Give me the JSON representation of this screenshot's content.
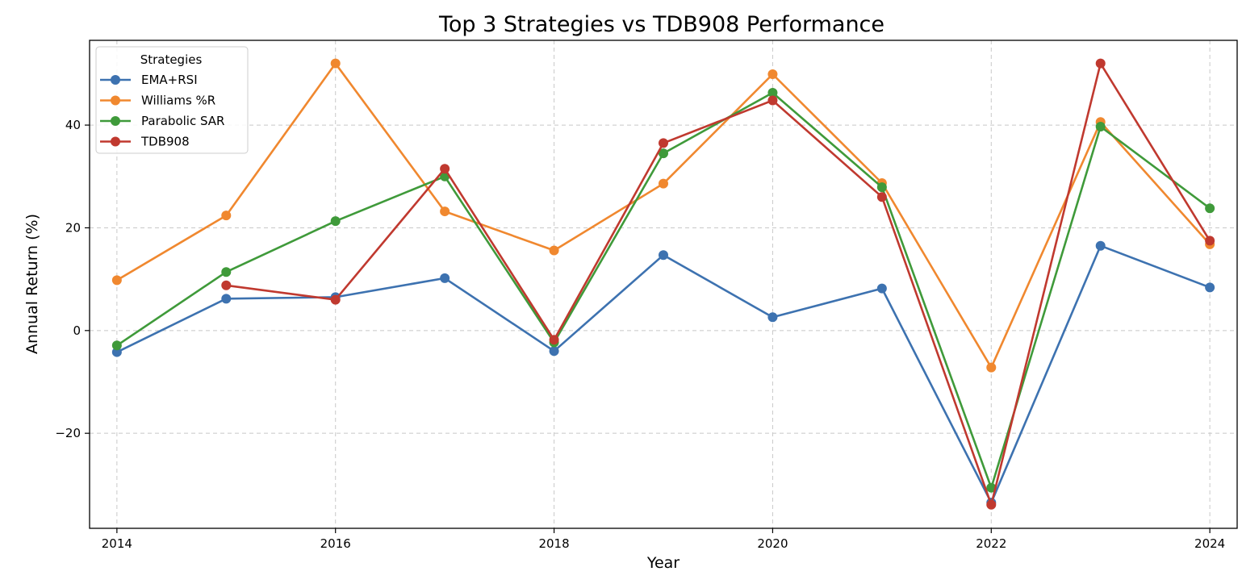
{
  "chart_data": {
    "type": "line",
    "title": "Top 3 Strategies vs TDB908 Performance",
    "xlabel": "Year",
    "ylabel": "Annual Return (%)",
    "x": [
      2014,
      2015,
      2016,
      2017,
      2018,
      2019,
      2020,
      2021,
      2022,
      2023,
      2024
    ],
    "xlim": [
      2013.75,
      2024.25
    ],
    "ylim": [
      -38.5,
      56.5
    ],
    "xticks": [
      2014,
      2016,
      2018,
      2020,
      2022,
      2024
    ],
    "yticks": [
      -20,
      0,
      20,
      40
    ],
    "ytick_labels": [
      "−20",
      "0",
      "20",
      "40"
    ],
    "grid": true,
    "legend": {
      "title": "Strategies",
      "position": "top-left"
    },
    "series": [
      {
        "name": "EMA+RSI",
        "color": "#3d72b0",
        "values": [
          -4.2,
          6.2,
          6.5,
          10.2,
          -4.0,
          14.7,
          2.6,
          8.2,
          -33.5,
          16.5,
          8.4
        ]
      },
      {
        "name": "Williams %R",
        "color": "#f0882f",
        "values": [
          9.8,
          22.4,
          52.0,
          23.2,
          15.6,
          28.6,
          49.9,
          28.7,
          -7.2,
          40.6,
          16.8
        ]
      },
      {
        "name": "Parabolic SAR",
        "color": "#3f9a3a",
        "values": [
          -2.9,
          11.4,
          21.3,
          30.0,
          -2.3,
          34.5,
          46.3,
          27.9,
          -30.6,
          39.7,
          23.8
        ]
      },
      {
        "name": "TDB908",
        "color": "#c0392f",
        "values": [
          null,
          8.8,
          6.0,
          31.5,
          -1.8,
          36.5,
          44.8,
          26.0,
          -33.9,
          52.0,
          17.5
        ]
      }
    ]
  }
}
